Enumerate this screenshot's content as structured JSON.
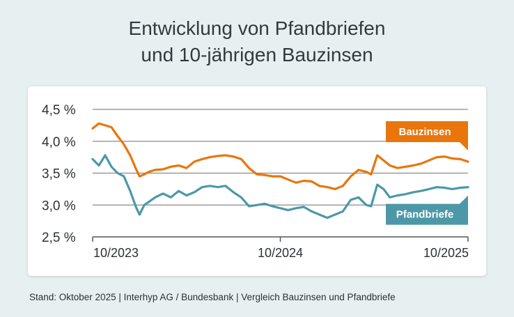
{
  "title_line1": "Entwicklung von Pfandbriefen",
  "title_line2": "und 10-jährigen Bauzinsen",
  "footer": "Stand: Oktober 2025 | Interhyp AG / Bundesbank | Vergleich Bauzinsen und Pfandbriefe",
  "chart_data": {
    "type": "line",
    "title": "Entwicklung von Pfandbriefen und 10-jährigen Bauzinsen",
    "xlabel": "",
    "ylabel": "",
    "ylim": [
      2.5,
      4.5
    ],
    "yticks": [
      "4,5 %",
      "4,0 %",
      "3,5 %",
      "3,0 %",
      "2,5 %"
    ],
    "ytick_values": [
      4.5,
      4.0,
      3.5,
      3.0,
      2.5
    ],
    "xticks": [
      "10/2023",
      "10/2024",
      "10/2025"
    ],
    "xtick_positions": [
      0,
      12,
      24
    ],
    "x_unit": "months since 10/2023",
    "grid": true,
    "legend": "inline labels at right end",
    "series": [
      {
        "name": "Bauzinsen",
        "color": "#e8760c",
        "x": [
          0,
          0.4,
          0.8,
          1.2,
          1.6,
          2.0,
          2.4,
          2.8,
          3.0,
          3.3,
          3.6,
          4.0,
          4.5,
          5.0,
          5.5,
          6.0,
          6.5,
          7.0,
          7.5,
          8.0,
          8.5,
          9.0,
          9.5,
          10.0,
          10.5,
          11.0,
          11.5,
          12.0,
          12.5,
          13.0,
          13.5,
          14.0,
          14.5,
          15.0,
          15.5,
          16.0,
          16.5,
          17.0,
          17.5,
          17.8,
          18.2,
          18.6,
          19.0,
          19.5,
          20.0,
          20.5,
          21.0,
          21.5,
          22.0,
          22.5,
          23.0,
          23.5,
          24.0
        ],
        "y": [
          4.2,
          4.28,
          4.25,
          4.22,
          4.08,
          3.95,
          3.78,
          3.55,
          3.45,
          3.48,
          3.52,
          3.55,
          3.56,
          3.6,
          3.62,
          3.58,
          3.68,
          3.72,
          3.75,
          3.77,
          3.78,
          3.76,
          3.72,
          3.58,
          3.48,
          3.47,
          3.45,
          3.45,
          3.4,
          3.35,
          3.38,
          3.37,
          3.3,
          3.28,
          3.25,
          3.3,
          3.45,
          3.55,
          3.52,
          3.48,
          3.78,
          3.7,
          3.62,
          3.58,
          3.6,
          3.62,
          3.65,
          3.7,
          3.75,
          3.76,
          3.73,
          3.72,
          3.68
        ]
      },
      {
        "name": "Pfandbriefe",
        "color": "#4c98a8",
        "x": [
          0,
          0.4,
          0.8,
          1.2,
          1.6,
          2.0,
          2.4,
          2.8,
          3.0,
          3.3,
          3.6,
          4.0,
          4.5,
          5.0,
          5.5,
          6.0,
          6.5,
          7.0,
          7.5,
          8.0,
          8.5,
          9.0,
          9.5,
          10.0,
          10.5,
          11.0,
          11.5,
          12.0,
          12.5,
          13.0,
          13.5,
          14.0,
          14.5,
          15.0,
          15.5,
          16.0,
          16.5,
          17.0,
          17.5,
          17.8,
          18.2,
          18.6,
          19.0,
          19.5,
          20.0,
          20.5,
          21.0,
          21.5,
          22.0,
          22.5,
          23.0,
          23.5,
          24.0
        ],
        "y": [
          3.72,
          3.62,
          3.78,
          3.6,
          3.5,
          3.45,
          3.22,
          2.95,
          2.85,
          3.0,
          3.05,
          3.12,
          3.18,
          3.12,
          3.22,
          3.15,
          3.2,
          3.28,
          3.3,
          3.28,
          3.3,
          3.2,
          3.12,
          2.98,
          3.0,
          3.02,
          2.98,
          2.95,
          2.92,
          2.95,
          2.97,
          2.9,
          2.85,
          2.8,
          2.85,
          2.9,
          3.08,
          3.12,
          3.0,
          2.98,
          3.32,
          3.25,
          3.12,
          3.15,
          3.17,
          3.2,
          3.22,
          3.25,
          3.28,
          3.27,
          3.25,
          3.27,
          3.28
        ]
      }
    ]
  }
}
